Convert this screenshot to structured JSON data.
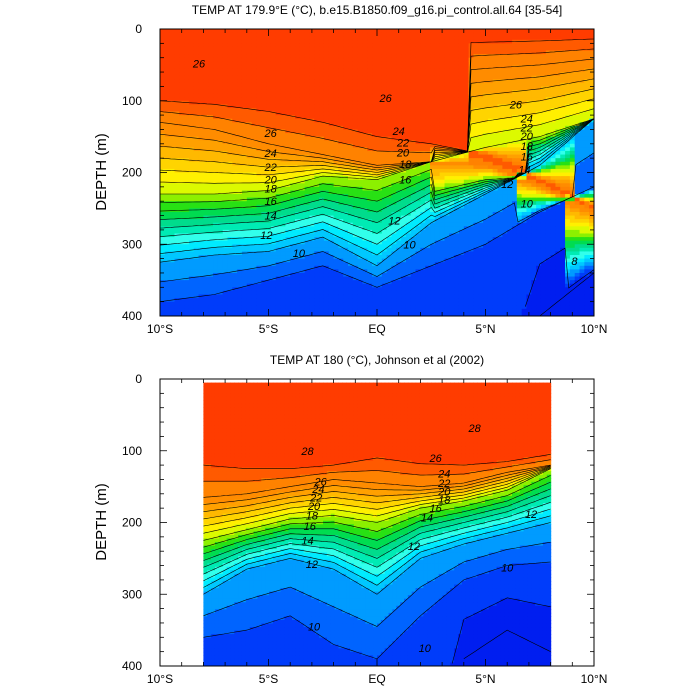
{
  "chart_data": [
    {
      "type": "heatmap",
      "subtype": "filled contour section",
      "title": "TEMP AT 179.9°E (°C), b.e15.B1850.f09_g16.pi_control.all.64 [35-54]",
      "xlabel": "",
      "ylabel": "DEPTH (m)",
      "xlim": [
        -10,
        10
      ],
      "ylim": [
        400,
        0
      ],
      "x_ticks": [
        -10,
        -5,
        0,
        5,
        10
      ],
      "x_tick_labels": [
        "10°S",
        "5°S",
        "EQ",
        "5°N",
        "10°N"
      ],
      "y_ticks": [
        0,
        100,
        200,
        300,
        400
      ],
      "y_tick_labels": [
        "0",
        "100",
        "200",
        "300",
        "400"
      ],
      "data_extent_x": [
        -10,
        10
      ],
      "contour_interval": 1,
      "colorbar": "none",
      "profile": {
        "x": [
          -10,
          -7.5,
          -5,
          -2.5,
          0,
          2.5,
          5,
          7.5,
          10
        ],
        "levels": [
          28,
          26,
          20,
          12,
          10,
          8
        ],
        "depths": [
          [
            100,
            105,
            115,
            130,
            150,
            160,
            175,
            210,
            250
          ],
          [
            130,
            140,
            160,
            175,
            190,
            185,
            190,
            220,
            255
          ],
          [
            230,
            230,
            225,
            205,
            210,
            185,
            165,
            150,
            125
          ],
          [
            325,
            315,
            310,
            290,
            330,
            270,
            230,
            190,
            125
          ],
          [
            380,
            370,
            350,
            330,
            360,
            330,
            300,
            255,
            220
          ],
          [
            800,
            800,
            800,
            800,
            800,
            800,
            800,
            400,
            340
          ]
        ]
      },
      "contour_labels": [
        {
          "value": "26",
          "x": -8.2,
          "y": 48
        },
        {
          "value": "26",
          "x": 0.4,
          "y": 96
        },
        {
          "value": "26",
          "x": 6.4,
          "y": 105
        },
        {
          "value": "26",
          "x": -4.9,
          "y": 145
        },
        {
          "value": "24",
          "x": -4.9,
          "y": 173
        },
        {
          "value": "22",
          "x": -4.9,
          "y": 192
        },
        {
          "value": "20",
          "x": -4.9,
          "y": 210
        },
        {
          "value": "18",
          "x": -4.9,
          "y": 222
        },
        {
          "value": "16",
          "x": -4.9,
          "y": 240
        },
        {
          "value": "14",
          "x": -4.9,
          "y": 260
        },
        {
          "value": "12",
          "x": -5.1,
          "y": 287
        },
        {
          "value": "10",
          "x": -3.6,
          "y": 312
        },
        {
          "value": "24",
          "x": 1.0,
          "y": 142
        },
        {
          "value": "22",
          "x": 1.2,
          "y": 158
        },
        {
          "value": "20",
          "x": 1.2,
          "y": 172
        },
        {
          "value": "18",
          "x": 1.3,
          "y": 188
        },
        {
          "value": "16",
          "x": 1.3,
          "y": 210
        },
        {
          "value": "12",
          "x": 0.8,
          "y": 267
        },
        {
          "value": "10",
          "x": 1.5,
          "y": 300
        },
        {
          "value": "24",
          "x": 6.9,
          "y": 125
        },
        {
          "value": "22",
          "x": 6.9,
          "y": 137
        },
        {
          "value": "20",
          "x": 6.9,
          "y": 149
        },
        {
          "value": "18",
          "x": 6.9,
          "y": 163
        },
        {
          "value": "16",
          "x": 6.9,
          "y": 178
        },
        {
          "value": "14",
          "x": 6.8,
          "y": 196
        },
        {
          "value": "12",
          "x": 6.0,
          "y": 216
        },
        {
          "value": "10",
          "x": 6.9,
          "y": 243
        },
        {
          "value": "8",
          "x": 9.1,
          "y": 323
        }
      ]
    },
    {
      "type": "heatmap",
      "subtype": "filled contour section",
      "title": "TEMP AT 180 (°C), Johnson et al (2002)",
      "xlabel": "",
      "ylabel": "DEPTH (m)",
      "xlim": [
        -10,
        10
      ],
      "ylim": [
        400,
        0
      ],
      "x_ticks": [
        -10,
        -5,
        0,
        5,
        10
      ],
      "x_tick_labels": [
        "10°S",
        "5°S",
        "EQ",
        "5°N",
        "10°N"
      ],
      "y_ticks": [
        0,
        100,
        200,
        300,
        400
      ],
      "y_tick_labels": [
        "0",
        "100",
        "200",
        "300",
        "400"
      ],
      "data_extent_x": [
        -8,
        8
      ],
      "data_extent_y": [
        5,
        400
      ],
      "contour_interval": 1,
      "colorbar": "none",
      "profile": {
        "x": [
          -8,
          -6,
          -4,
          -2,
          0,
          2,
          4,
          6,
          8
        ],
        "levels": [
          28,
          26,
          20,
          12,
          10,
          8
        ],
        "depths": [
          [
            120,
            125,
            125,
            120,
            110,
            118,
            120,
            115,
            105
          ],
          [
            165,
            160,
            150,
            140,
            145,
            150,
            145,
            130,
            120
          ],
          [
            225,
            210,
            195,
            190,
            200,
            180,
            170,
            155,
            125
          ],
          [
            300,
            265,
            250,
            265,
            300,
            250,
            230,
            215,
            200
          ],
          [
            360,
            350,
            330,
            370,
            390,
            330,
            280,
            260,
            255
          ],
          [
            800,
            800,
            800,
            800,
            800,
            800,
            390,
            350,
            380
          ]
        ]
      },
      "contour_labels": [
        {
          "value": "28",
          "x": -3.2,
          "y": 100
        },
        {
          "value": "28",
          "x": 4.5,
          "y": 68
        },
        {
          "value": "26",
          "x": 2.7,
          "y": 110
        },
        {
          "value": "26",
          "x": -2.6,
          "y": 143
        },
        {
          "value": "24",
          "x": -2.7,
          "y": 153
        },
        {
          "value": "22",
          "x": -2.8,
          "y": 165
        },
        {
          "value": "20",
          "x": -2.9,
          "y": 177
        },
        {
          "value": "18",
          "x": -3.0,
          "y": 190
        },
        {
          "value": "16",
          "x": -3.1,
          "y": 205
        },
        {
          "value": "14",
          "x": -3.2,
          "y": 225
        },
        {
          "value": "12",
          "x": -3.0,
          "y": 258
        },
        {
          "value": "10",
          "x": -2.9,
          "y": 345
        },
        {
          "value": "24",
          "x": 3.1,
          "y": 132
        },
        {
          "value": "22",
          "x": 3.1,
          "y": 145
        },
        {
          "value": "20",
          "x": 3.1,
          "y": 157
        },
        {
          "value": "18",
          "x": 3.1,
          "y": 168
        },
        {
          "value": "16",
          "x": 2.7,
          "y": 180
        },
        {
          "value": "14",
          "x": 2.3,
          "y": 193
        },
        {
          "value": "12",
          "x": 1.7,
          "y": 233
        },
        {
          "value": "12",
          "x": 7.1,
          "y": 188
        },
        {
          "value": "10",
          "x": 6.0,
          "y": 263
        },
        {
          "value": "10",
          "x": 2.2,
          "y": 375
        }
      ]
    }
  ]
}
